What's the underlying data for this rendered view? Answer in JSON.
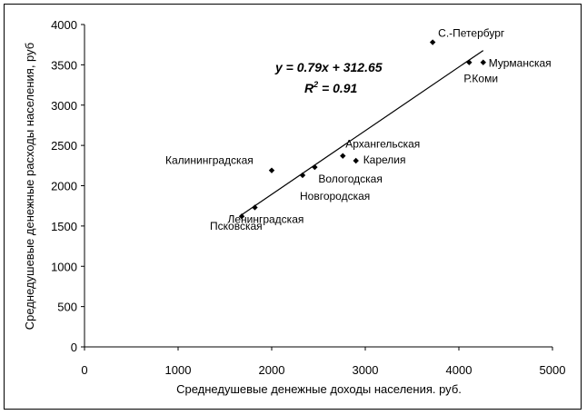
{
  "chart_data": {
    "type": "scatter",
    "xlabel": "Среднедушевые денежные доходы населения. руб.",
    "ylabel": "Среднедушевые денежные расходы населения, руб",
    "xlim": [
      0,
      5000
    ],
    "ylim": [
      0,
      4000
    ],
    "xticks": [
      "0",
      "1000",
      "2000",
      "3000",
      "4000",
      "5000"
    ],
    "yticks": [
      "0",
      "500",
      "1000",
      "1500",
      "2000",
      "2500",
      "3000",
      "3500",
      "4000"
    ],
    "grid": false,
    "points": [
      {
        "x": 1680,
        "y": 1620,
        "label": "Псковская"
      },
      {
        "x": 1820,
        "y": 1730,
        "label": "Ленинградская"
      },
      {
        "x": 2000,
        "y": 2190,
        "label": "Калининградская"
      },
      {
        "x": 2330,
        "y": 2130,
        "label": "Новгородская"
      },
      {
        "x": 2460,
        "y": 2230,
        "label": "Вологодская"
      },
      {
        "x": 2760,
        "y": 2370,
        "label": "Архангельская"
      },
      {
        "x": 2900,
        "y": 2310,
        "label": "Карелия"
      },
      {
        "x": 3720,
        "y": 3780,
        "label": "С.-Петербург"
      },
      {
        "x": 4110,
        "y": 3530,
        "label": "Р.Коми"
      },
      {
        "x": 4260,
        "y": 3530,
        "label": "Мурманская"
      }
    ],
    "trendline": {
      "slope": 0.79,
      "intercept": 312.65,
      "x_range": [
        1680,
        4260
      ]
    },
    "equation": "y = 0.79x + 312.65",
    "r2_prefix": "R",
    "r2_exp": "2",
    "r2_suffix": " = 0.91"
  }
}
